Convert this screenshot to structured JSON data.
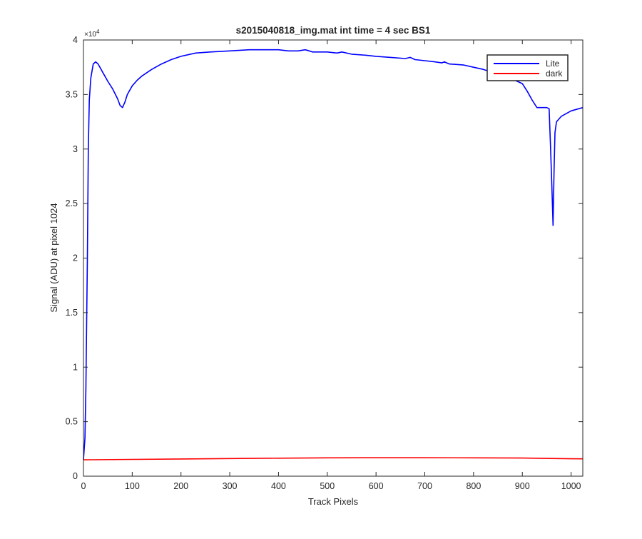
{
  "chart_data": {
    "type": "line",
    "title": "s2015040818_img.mat int time = 4 sec   BS1",
    "xlabel": "Track Pixels",
    "ylabel": "Signal (ADU) at pixel 1024",
    "xlim": [
      0,
      1024
    ],
    "ylim": [
      0,
      40000
    ],
    "y_exponent_label": "×10",
    "y_exponent_power": "4",
    "x_ticks": [
      0,
      100,
      200,
      300,
      400,
      500,
      600,
      700,
      800,
      900,
      1000
    ],
    "x_tick_labels": [
      "0",
      "100",
      "200",
      "300",
      "400",
      "500",
      "600",
      "700",
      "800",
      "900",
      "1000"
    ],
    "y_ticks": [
      0,
      5000,
      10000,
      15000,
      20000,
      25000,
      30000,
      35000,
      40000
    ],
    "y_tick_labels": [
      "0",
      "0.5",
      "1",
      "1.5",
      "2",
      "2.5",
      "3",
      "3.5",
      "4"
    ],
    "grid": false,
    "legend_position": "top-right",
    "series": [
      {
        "name": "Lite",
        "color": "#0000ff",
        "points": [
          [
            0,
            1500
          ],
          [
            3,
            3500
          ],
          [
            5,
            8000
          ],
          [
            8,
            20000
          ],
          [
            10,
            30000
          ],
          [
            12,
            34500
          ],
          [
            15,
            36500
          ],
          [
            20,
            37800
          ],
          [
            25,
            38000
          ],
          [
            30,
            37800
          ],
          [
            40,
            37000
          ],
          [
            50,
            36200
          ],
          [
            60,
            35500
          ],
          [
            70,
            34600
          ],
          [
            75,
            34000
          ],
          [
            80,
            33800
          ],
          [
            85,
            34300
          ],
          [
            90,
            35000
          ],
          [
            100,
            35800
          ],
          [
            110,
            36300
          ],
          [
            120,
            36700
          ],
          [
            140,
            37300
          ],
          [
            160,
            37800
          ],
          [
            180,
            38200
          ],
          [
            200,
            38500
          ],
          [
            230,
            38800
          ],
          [
            260,
            38900
          ],
          [
            300,
            39000
          ],
          [
            340,
            39100
          ],
          [
            380,
            39100
          ],
          [
            400,
            39100
          ],
          [
            420,
            39000
          ],
          [
            440,
            39000
          ],
          [
            455,
            39100
          ],
          [
            470,
            38900
          ],
          [
            500,
            38900
          ],
          [
            520,
            38800
          ],
          [
            530,
            38900
          ],
          [
            550,
            38700
          ],
          [
            580,
            38600
          ],
          [
            600,
            38500
          ],
          [
            630,
            38400
          ],
          [
            660,
            38300
          ],
          [
            670,
            38400
          ],
          [
            680,
            38200
          ],
          [
            700,
            38100
          ],
          [
            720,
            38000
          ],
          [
            735,
            37900
          ],
          [
            740,
            38000
          ],
          [
            750,
            37800
          ],
          [
            780,
            37700
          ],
          [
            800,
            37500
          ],
          [
            820,
            37300
          ],
          [
            840,
            37000
          ],
          [
            860,
            36700
          ],
          [
            880,
            36400
          ],
          [
            900,
            36000
          ],
          [
            910,
            35300
          ],
          [
            920,
            34500
          ],
          [
            930,
            33800
          ],
          [
            940,
            33800
          ],
          [
            950,
            33800
          ],
          [
            955,
            33700
          ],
          [
            958,
            30000
          ],
          [
            961,
            26000
          ],
          [
            963,
            23000
          ],
          [
            965,
            28000
          ],
          [
            967,
            31500
          ],
          [
            970,
            32500
          ],
          [
            980,
            33000
          ],
          [
            1000,
            33500
          ],
          [
            1024,
            33800
          ]
        ]
      },
      {
        "name": "dark",
        "color": "#ff0000",
        "points": [
          [
            0,
            1500
          ],
          [
            100,
            1540
          ],
          [
            200,
            1580
          ],
          [
            300,
            1620
          ],
          [
            400,
            1650
          ],
          [
            500,
            1680
          ],
          [
            600,
            1690
          ],
          [
            700,
            1690
          ],
          [
            800,
            1680
          ],
          [
            900,
            1660
          ],
          [
            1000,
            1600
          ],
          [
            1024,
            1590
          ]
        ]
      }
    ]
  }
}
